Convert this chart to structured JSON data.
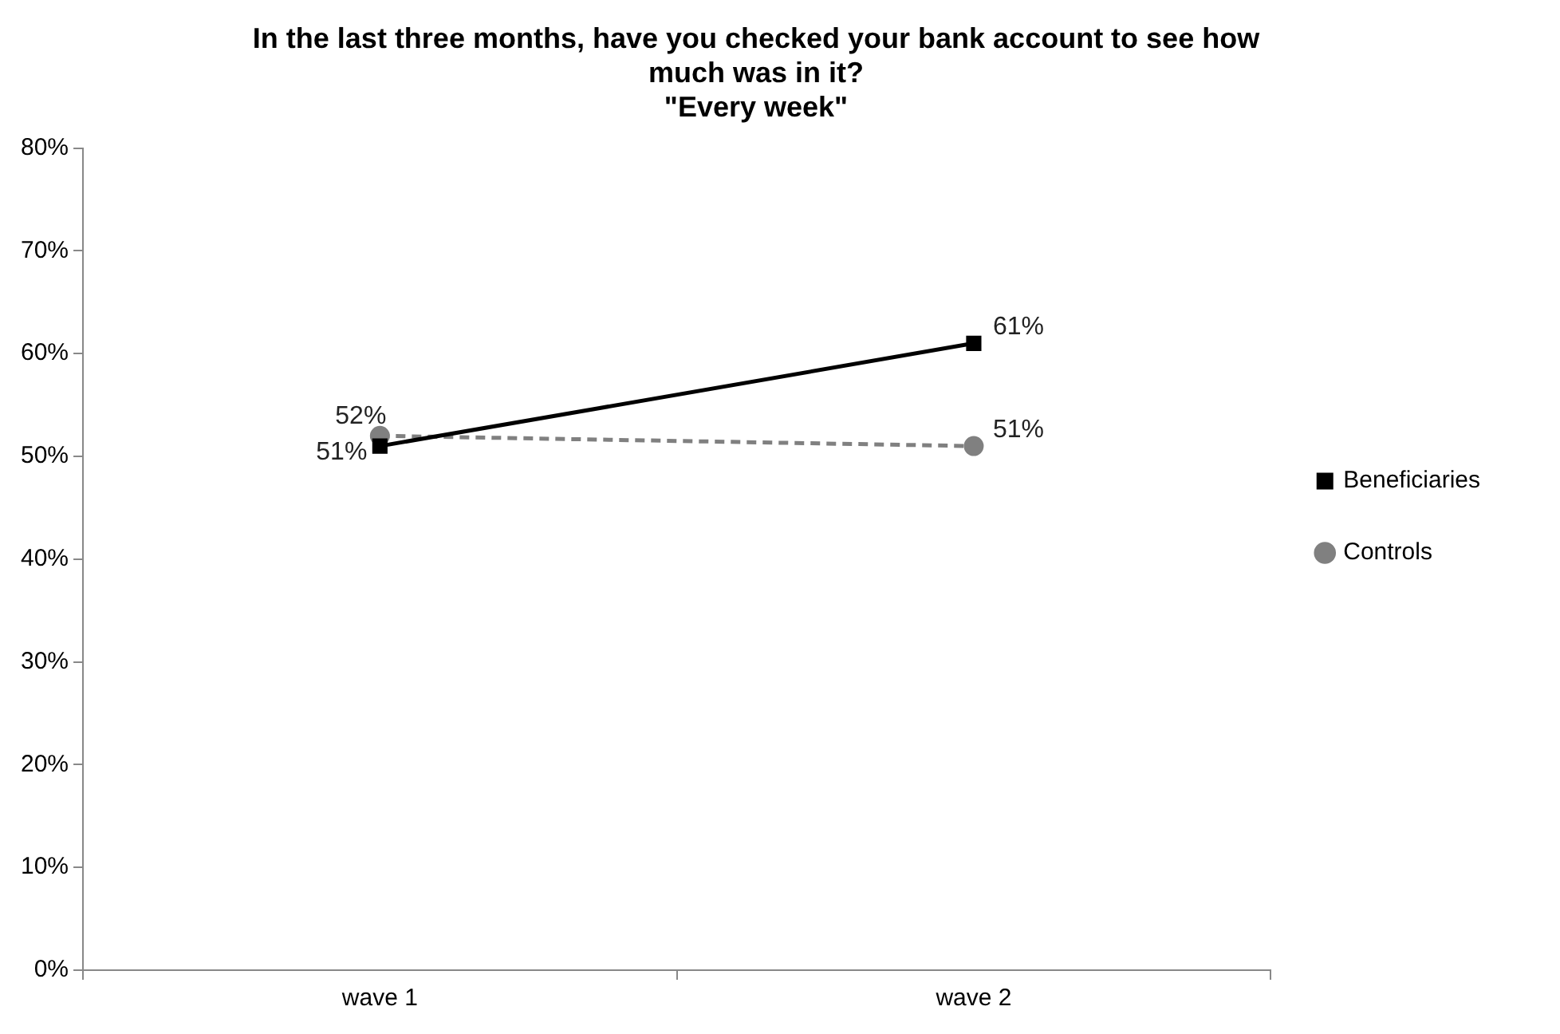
{
  "chart_data": {
    "type": "line",
    "title": "In the last three months, have you checked your bank account to see how much was in it?",
    "subtitle": "\"Every week\"",
    "categories": [
      "wave 1",
      "wave 2"
    ],
    "series": [
      {
        "name": "Beneficiaries",
        "color": "#000000",
        "values": [
          51,
          61
        ],
        "value_labels": [
          "51%",
          "61%"
        ],
        "marker": "square",
        "line_style": "solid"
      },
      {
        "name": "Controls",
        "color": "#808080",
        "values": [
          52,
          51
        ],
        "value_labels": [
          "52%",
          "51%"
        ],
        "marker": "circle",
        "line_style": "dashed"
      }
    ],
    "ylim": [
      0,
      80
    ],
    "yticks": [
      {
        "value": 0,
        "label": "0%"
      },
      {
        "value": 10,
        "label": "10%"
      },
      {
        "value": 20,
        "label": "20%"
      },
      {
        "value": 30,
        "label": "30%"
      },
      {
        "value": 40,
        "label": "40%"
      },
      {
        "value": 50,
        "label": "50%"
      },
      {
        "value": 60,
        "label": "60%"
      },
      {
        "value": 70,
        "label": "70%"
      },
      {
        "value": 80,
        "label": "80%"
      }
    ],
    "grid": false,
    "legend": "right"
  }
}
